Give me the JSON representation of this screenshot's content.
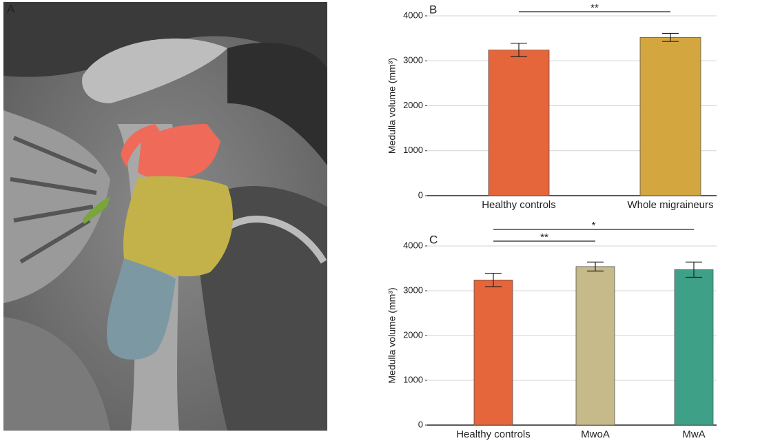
{
  "image_panel": {
    "label": "A"
  },
  "chart_data": [
    {
      "type": "bar",
      "panel_label": "B",
      "ylabel": "Medulla volume (mm³)",
      "categories": [
        "Healthy controls",
        "Whole migraineurs"
      ],
      "values": [
        3240,
        3520
      ],
      "errors": [
        150,
        90
      ],
      "colors": [
        "#e4663a",
        "#d4a640"
      ],
      "ylim": [
        0,
        4000
      ],
      "yticks": [
        0,
        1000,
        2000,
        3000,
        4000
      ],
      "grid": true,
      "annotations": [
        {
          "text": "**",
          "from": 0,
          "to": 1
        }
      ]
    },
    {
      "type": "bar",
      "panel_label": "C",
      "ylabel": "Medulla volume (mm³)",
      "categories": [
        "Healthy controls",
        "MwoA",
        "MwA"
      ],
      "values": [
        3240,
        3540,
        3470
      ],
      "errors": [
        150,
        100,
        170
      ],
      "colors": [
        "#e4663a",
        "#c6b98a",
        "#3fa088"
      ],
      "ylim": [
        0,
        4000
      ],
      "yticks": [
        0,
        1000,
        2000,
        3000,
        4000
      ],
      "grid": true,
      "annotations": [
        {
          "text": "*",
          "from": 0,
          "to": 2
        },
        {
          "text": "**",
          "from": 0,
          "to": 1
        }
      ]
    }
  ]
}
